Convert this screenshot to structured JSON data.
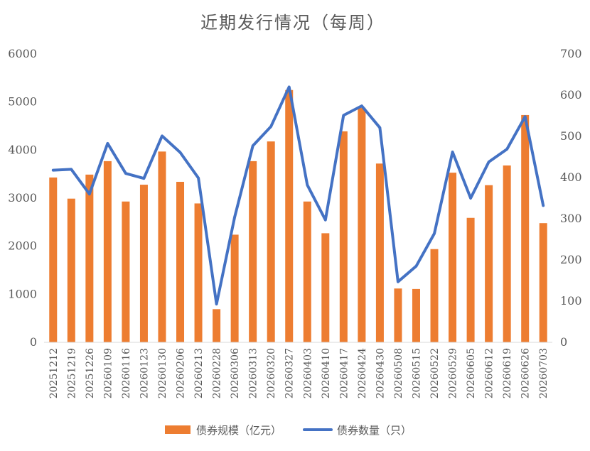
{
  "chart_data": {
    "type": "bar",
    "title": "近期发行情况（每周）",
    "categories": [
      "20251212",
      "20251219",
      "20251226",
      "20260109",
      "20260116",
      "20260123",
      "20260130",
      "20260206",
      "20260213",
      "20260228",
      "20260306",
      "20260313",
      "20260320",
      "20260327",
      "20260403",
      "20260410",
      "20260417",
      "20260424",
      "20260430",
      "20260508",
      "20260515",
      "20260522",
      "20260529",
      "20260605",
      "20260612",
      "20260619",
      "20260626",
      "20260703"
    ],
    "series": [
      {
        "name": "债券规模（亿元）",
        "type": "bar",
        "axis": "left",
        "color": "#ED7D31",
        "values": [
          3430,
          2990,
          3490,
          3770,
          2930,
          3280,
          3970,
          3340,
          2890,
          690,
          2240,
          3770,
          4180,
          5250,
          2930,
          2270,
          4390,
          4880,
          3720,
          1120,
          1110,
          1940,
          3530,
          2590,
          3270,
          3680,
          4730,
          2480
        ]
      },
      {
        "name": "债券数量（只）",
        "type": "line",
        "axis": "right",
        "color": "#4472C4",
        "values": [
          418,
          420,
          360,
          483,
          410,
          398,
          501,
          461,
          399,
          93,
          304,
          477,
          524,
          620,
          382,
          297,
          551,
          574,
          521,
          147,
          185,
          264,
          462,
          350,
          438,
          469,
          548,
          332
        ]
      }
    ],
    "ylim_left": [
      0,
      6000
    ],
    "ylim_right": [
      0,
      700
    ],
    "yticks_left": [
      "0",
      "1000",
      "2000",
      "3000",
      "4000",
      "5000",
      "6000"
    ],
    "yticks_right": [
      "0",
      "100",
      "200",
      "300",
      "400",
      "500",
      "600",
      "700"
    ],
    "grid": false,
    "legend_position": "bottom"
  }
}
